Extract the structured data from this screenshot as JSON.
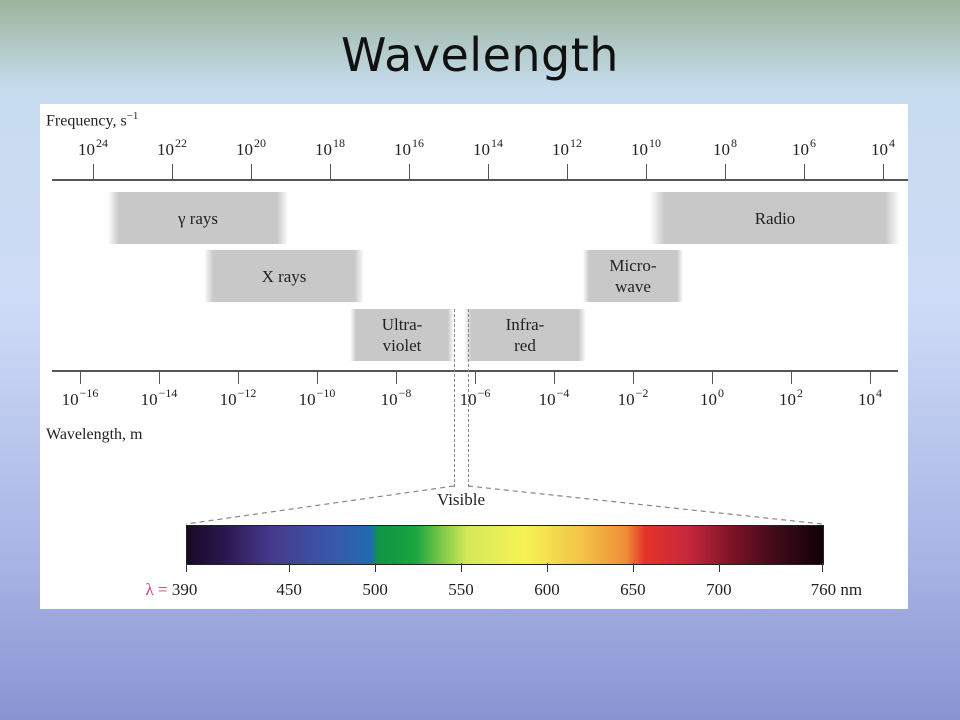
{
  "slide": {
    "title": "Wavelength"
  },
  "frequency_axis": {
    "title": "Frequency, s",
    "title_exp": "−1",
    "ticks": [
      {
        "base": "10",
        "exp": "24"
      },
      {
        "base": "10",
        "exp": "22"
      },
      {
        "base": "10",
        "exp": "20"
      },
      {
        "base": "10",
        "exp": "18"
      },
      {
        "base": "10",
        "exp": "16"
      },
      {
        "base": "10",
        "exp": "14"
      },
      {
        "base": "10",
        "exp": "12"
      },
      {
        "base": "10",
        "exp": "10"
      },
      {
        "base": "10",
        "exp": "8"
      },
      {
        "base": "10",
        "exp": "6"
      },
      {
        "base": "10",
        "exp": "4"
      }
    ]
  },
  "wavelength_axis": {
    "title": "Wavelength, m",
    "ticks": [
      {
        "base": "10",
        "exp": "−16"
      },
      {
        "base": "10",
        "exp": "−14"
      },
      {
        "base": "10",
        "exp": "−12"
      },
      {
        "base": "10",
        "exp": "−10"
      },
      {
        "base": "10",
        "exp": "−8"
      },
      {
        "base": "10",
        "exp": "−6"
      },
      {
        "base": "10",
        "exp": "−4"
      },
      {
        "base": "10",
        "exp": "−2"
      },
      {
        "base": "10",
        "exp": "0"
      },
      {
        "base": "10",
        "exp": "2"
      },
      {
        "base": "10",
        "exp": "4"
      }
    ]
  },
  "bands": {
    "gamma": "γ rays",
    "xray": "X rays",
    "ultraviolet_1": "Ultra-",
    "ultraviolet_2": "violet",
    "infrared_1": "Infra-",
    "infrared_2": "red",
    "microwave_1": "Micro-",
    "microwave_2": "wave",
    "radio": "Radio"
  },
  "visible": {
    "label": "Visible",
    "lambda_prefix": "λ =",
    "nm_ticks": [
      "390",
      "450",
      "500",
      "550",
      "600",
      "650",
      "700",
      "760"
    ],
    "unit": "nm"
  }
}
